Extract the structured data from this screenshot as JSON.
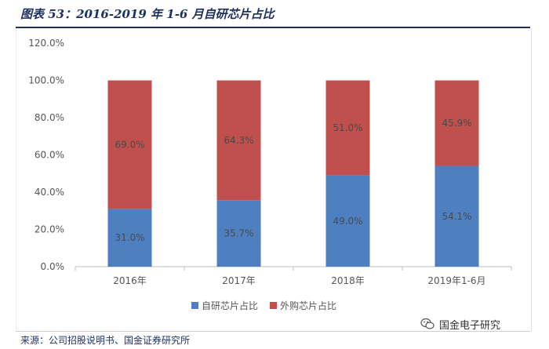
{
  "header": {
    "title": "图表 53：2016-2019 年 1-6 月自研芯片占比"
  },
  "source": "来源：公司招股说明书、国金证券研究所",
  "watermark": {
    "text": "国金电子研究",
    "icon": "wechat-icon"
  },
  "chart_data": {
    "type": "bar",
    "stacked": true,
    "categories": [
      "2016年",
      "2017年",
      "2018年",
      "2019年1-6月"
    ],
    "series": [
      {
        "name": "自研芯片占比",
        "values": [
          31.0,
          35.7,
          49.0,
          54.1
        ],
        "labels": [
          "31.0%",
          "35.7%",
          "49.0%",
          "54.1%"
        ],
        "color": "#4e7fc0"
      },
      {
        "name": "外购芯片占比",
        "values": [
          69.0,
          64.3,
          51.0,
          45.9
        ],
        "labels": [
          "69.0%",
          "64.3%",
          "51.0%",
          "45.9%"
        ],
        "color": "#c0504d"
      }
    ],
    "ylim": [
      0,
      120
    ],
    "yticks": [
      "0.0%",
      "20.0%",
      "40.0%",
      "60.0%",
      "80.0%",
      "100.0%",
      "120.0%"
    ],
    "ytick_values": [
      0,
      20,
      40,
      60,
      80,
      100,
      120
    ],
    "grid": false,
    "legend": "bottom"
  }
}
